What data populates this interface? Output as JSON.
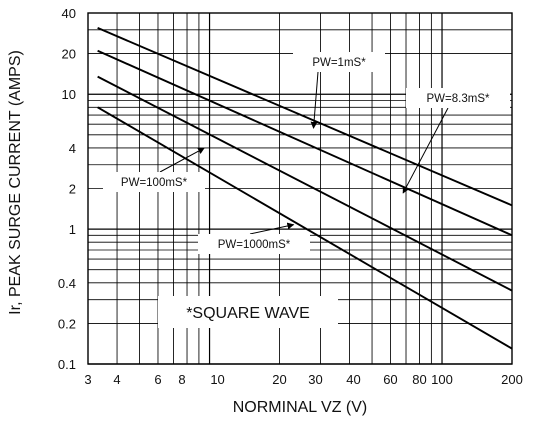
{
  "chart_data": {
    "type": "line",
    "title": "",
    "xlabel": "NORMINAL VZ (V)",
    "ylabel": "Ir, PEAK SURGE CURRENT (AMPS)",
    "x_scale": "log",
    "y_scale": "log",
    "xlim": [
      3,
      200
    ],
    "ylim": [
      0.1,
      40
    ],
    "grid": true,
    "x_ticks": [
      3,
      4,
      6,
      8,
      10,
      20,
      30,
      40,
      60,
      80,
      100,
      200
    ],
    "x_tick_labels": [
      "3",
      "4",
      "6",
      "8",
      "10",
      "20",
      "30",
      "40",
      "60",
      "80",
      "100",
      "200"
    ],
    "y_ticks": [
      0.1,
      0.2,
      0.4,
      1,
      2,
      4,
      10,
      20,
      40
    ],
    "y_tick_labels": [
      "0.1",
      "0.2",
      "0.4",
      "1",
      "2",
      "4",
      "10",
      "20",
      "40"
    ],
    "series": [
      {
        "name": "PW=1mS*",
        "x": [
          3.3,
          200
        ],
        "y": [
          31,
          1.5
        ]
      },
      {
        "name": "PW=8.3mS*",
        "x": [
          3.3,
          200
        ],
        "y": [
          21,
          0.9
        ]
      },
      {
        "name": "PW=100mS*",
        "x": [
          3.3,
          200
        ],
        "y": [
          13.5,
          0.35
        ]
      },
      {
        "name": "PW=1000mS*",
        "x": [
          3.3,
          200
        ],
        "y": [
          8,
          0.13
        ]
      }
    ],
    "annotations": [
      {
        "text": "PW=1mS*",
        "series": "PW=1mS*",
        "x": 28,
        "y": 5.6
      },
      {
        "text": "PW=8.3mS*",
        "series": "PW=8.3mS*",
        "x": 68,
        "y": 1.85
      },
      {
        "text": "PW=100mS*",
        "series": "PW=100mS*",
        "x": 9.5,
        "y": 4.0
      },
      {
        "text": "PW=1000mS*",
        "series": "PW=1000mS*",
        "x": 23,
        "y": 1.08
      }
    ],
    "note": "*SQUARE WAVE"
  }
}
